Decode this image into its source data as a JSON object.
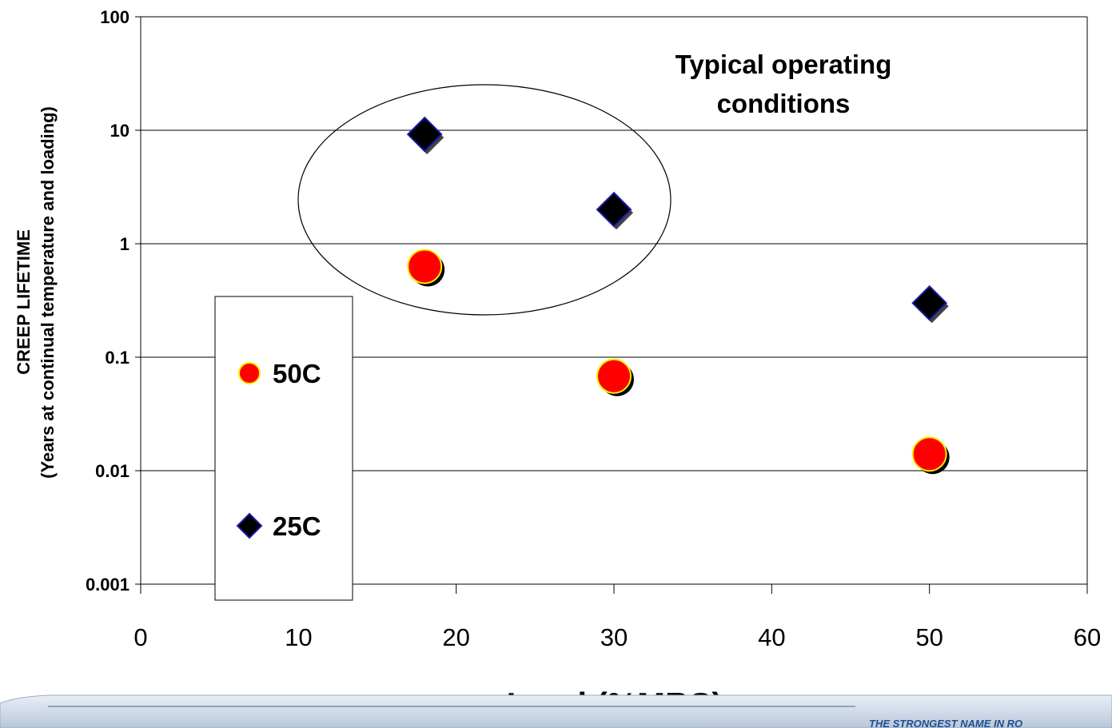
{
  "chart_data": {
    "type": "scatter",
    "title": "",
    "xlabel": "Load (%MBS)",
    "ylabel": [
      "CREEP LIFETIME",
      "(Years at continual temperature and loading)"
    ],
    "xlim": [
      0,
      60
    ],
    "ylim": [
      0.001,
      100
    ],
    "yscale": "log",
    "x_ticks": [
      "0",
      "10",
      "20",
      "30",
      "40",
      "50",
      "60"
    ],
    "y_ticks": [
      "0.001",
      "0.01",
      "0.1",
      "1",
      "10",
      "100"
    ],
    "grid": "horizontal",
    "legend_position": "left",
    "series": [
      {
        "name": "50C",
        "marker": "circle",
        "color": "#ff0000",
        "x": [
          18,
          30,
          50
        ],
        "y": [
          0.63,
          0.068,
          0.014
        ]
      },
      {
        "name": "25C",
        "marker": "diamond",
        "color": "#000000",
        "x": [
          18,
          30,
          50
        ],
        "y": [
          9.2,
          2.0,
          0.3
        ]
      }
    ],
    "annotations": [
      {
        "text": [
          "Typical operating",
          "conditions"
        ],
        "encloses": "points at 18 and 30 %MBS"
      }
    ]
  },
  "footer": {
    "tagline": "THE STRONGEST NAME IN RO"
  }
}
